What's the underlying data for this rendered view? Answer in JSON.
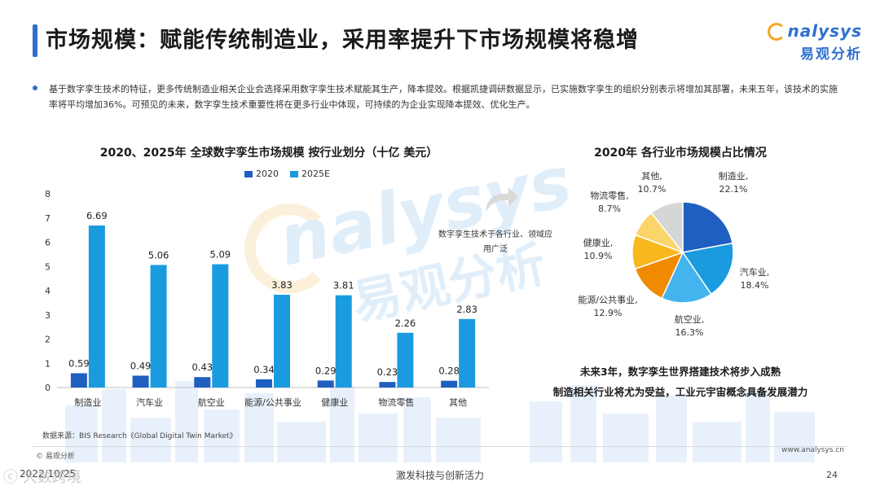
{
  "header": {
    "title": "市场规模：赋能传统制造业，采用率提升下市场规模将稳增",
    "logo_word": "nalysys",
    "logo_cn": "易观分析"
  },
  "intro": "基于数字孪生技术的特征，更多传统制造业相关企业会选择采用数字孪生技术赋能其生产，降本提效。根据凯捷调研数据显示，已实施数字孪生的组织分别表示将增加其部署，未来五年，该技术的实施率将平均增加36%。可预见的未来，数字孪生技术重要性将在更多行业中体现，可持续的为企业实现降本提效、优化生产。",
  "callout": "数字孪生技术于各行业、领域应用广泛",
  "conclusion": {
    "line1": "未来3年，数字孪生世界搭建技术将步入成熟",
    "line2": "制造相关行业将尤为受益，工业元宇宙概念具备发展潜力"
  },
  "footer": {
    "source": "数据来源：BIS Research《Global Digital Twin Market》",
    "copyright": "© 易观分析",
    "website": "www.analysys.cn",
    "date": "2022/10/25",
    "slogan": "激发科技与创新活力",
    "page": "24",
    "overlay": "ⓒ 大数跨境"
  },
  "colors": {
    "accent": "#2f6fd0",
    "series_2020": "#1f5fbf",
    "series_2025": "#1a9be0"
  },
  "chart_data": [
    {
      "type": "bar",
      "title": "2020、2025年 全球数字孪生市场规模 按行业划分（十亿 美元）",
      "categories": [
        "制造业",
        "汽车业",
        "航空业",
        "能源/公共事业",
        "健康业",
        "物流零售",
        "其他"
      ],
      "series": [
        {
          "name": "2020",
          "values": [
            0.59,
            0.49,
            0.43,
            0.34,
            0.29,
            0.23,
            0.28
          ]
        },
        {
          "name": "2025E",
          "values": [
            6.69,
            5.06,
            5.09,
            3.83,
            3.81,
            2.26,
            2.83
          ]
        }
      ],
      "ylim": [
        0,
        8
      ],
      "yticks": [
        0,
        1,
        2,
        3,
        4,
        5,
        6,
        7,
        8
      ],
      "grid": false,
      "legend": "top",
      "data_labels": true
    },
    {
      "type": "pie",
      "title": "2020年 各行业市场规模占比情况",
      "slices": [
        {
          "label": "制造业,",
          "pct": "22.1%",
          "value": 22.1,
          "color": "#1f5fbf"
        },
        {
          "label": "汽车业,",
          "pct": "18.4%",
          "value": 18.4,
          "color": "#1a9be0"
        },
        {
          "label": "航空业,",
          "pct": "16.3%",
          "value": 16.3,
          "color": "#44b4ee"
        },
        {
          "label": "能源/公共事业,",
          "pct": "12.9%",
          "value": 12.9,
          "color": "#f08a00"
        },
        {
          "label": "健康业,",
          "pct": "10.9%",
          "value": 10.9,
          "color": "#f8b81e"
        },
        {
          "label": "物流零售,",
          "pct": "8.7%",
          "value": 8.7,
          "color": "#fcd56a"
        },
        {
          "label": "其他,",
          "pct": "10.7%",
          "value": 10.7,
          "color": "#d6d6d6"
        }
      ]
    }
  ]
}
